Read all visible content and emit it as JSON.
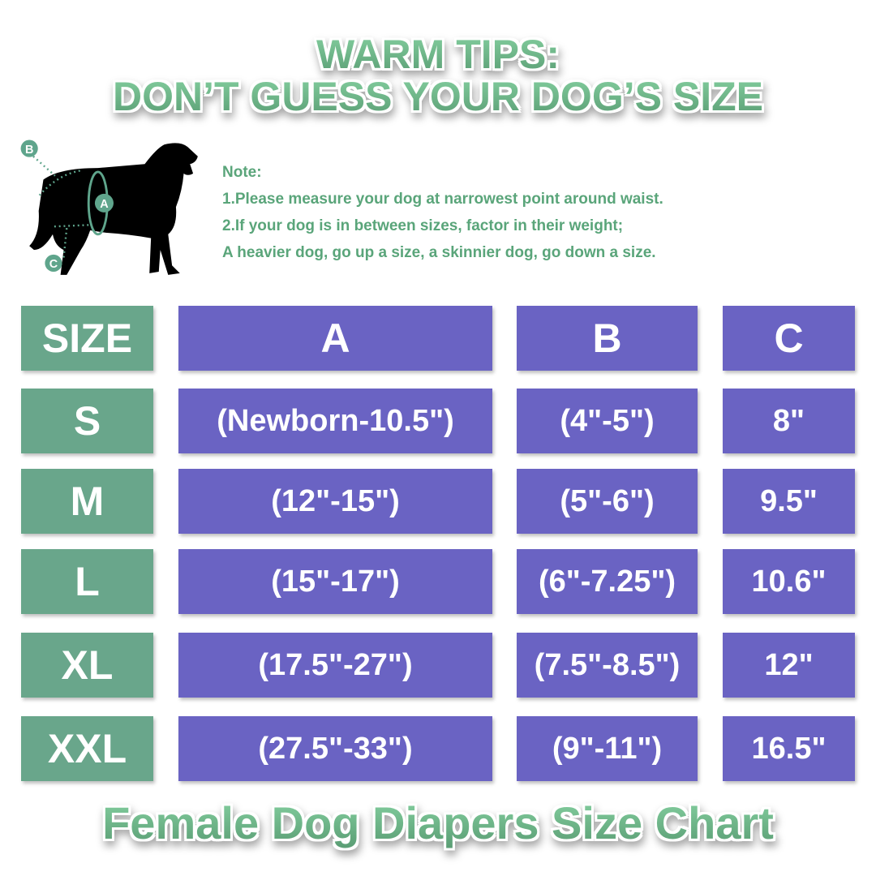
{
  "title_line1": "WARM TIPS:",
  "title_line2": "DON’T GUESS YOUR DOG’S SIZE",
  "footer_title": "Female Dog Diapers Size Chart",
  "diagram_labels": {
    "a": "A",
    "b": "B",
    "c": "C"
  },
  "note": {
    "heading": "Note:",
    "lines": [
      "1.Please measure your dog at narrowest point around  waist.",
      "2.If your dog is in between sizes, factor in their weight;",
      "A heavier dog, go up a size, a skinnier dog, go down a  size."
    ]
  },
  "colors": {
    "size_column": "#69a68b",
    "measure_columns": "#6a63c3",
    "title_green": "#6fba8b",
    "note_text": "#5aa57a"
  },
  "table": {
    "headers": [
      "SIZE",
      "A",
      "B",
      "C"
    ],
    "rows": [
      [
        "S",
        "(Newborn-10.5\")",
        "(4\"-5\")",
        "8\""
      ],
      [
        "M",
        "(12\"-15\")",
        "(5\"-6\")",
        "9.5\""
      ],
      [
        "L",
        "(15\"-17\")",
        "(6\"-7.25\")",
        "10.6\""
      ],
      [
        "XL",
        "(17.5\"-27\")",
        "(7.5\"-8.5\")",
        "12\""
      ],
      [
        "XXL",
        "(27.5\"-33\")",
        "(9\"-11\")",
        "16.5\""
      ]
    ]
  }
}
